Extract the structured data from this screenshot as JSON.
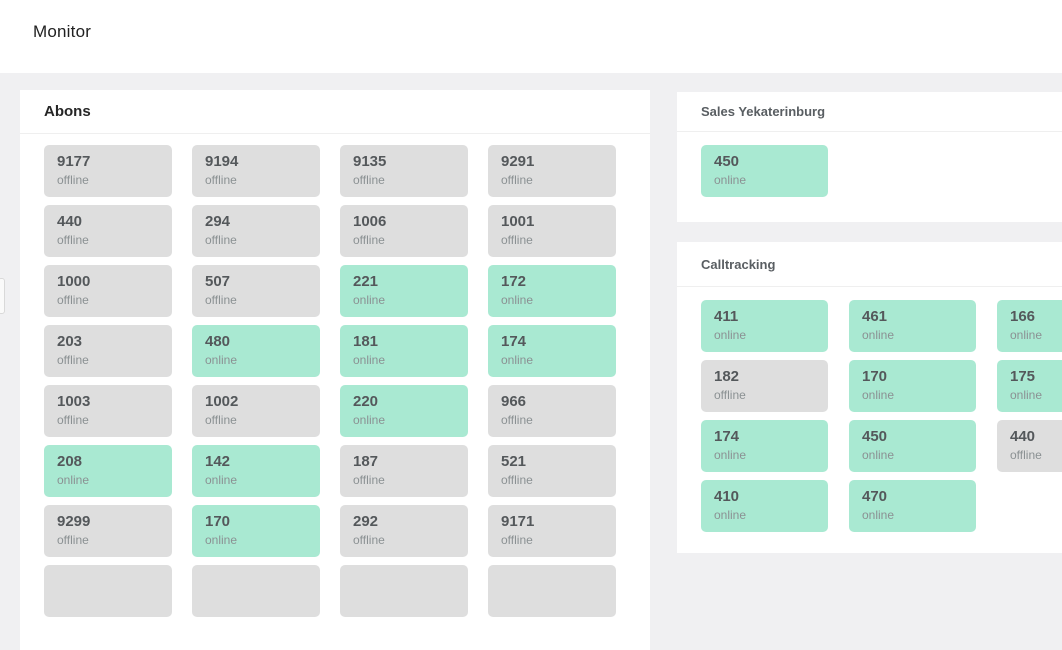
{
  "header": {
    "title": "Monitor"
  },
  "colors": {
    "online_bg": "#a9e9d2",
    "offline_bg": "#dedede",
    "page_bg": "#f0f0f2",
    "panel_bg": "#ffffff"
  },
  "panels": {
    "abons": {
      "title": "Abons",
      "cards": [
        {
          "value": "9177",
          "status": "offline"
        },
        {
          "value": "9194",
          "status": "offline"
        },
        {
          "value": "9135",
          "status": "offline"
        },
        {
          "value": "9291",
          "status": "offline"
        },
        {
          "value": "440",
          "status": "offline"
        },
        {
          "value": "294",
          "status": "offline"
        },
        {
          "value": "1006",
          "status": "offline"
        },
        {
          "value": "1001",
          "status": "offline"
        },
        {
          "value": "1000",
          "status": "offline"
        },
        {
          "value": "507",
          "status": "offline"
        },
        {
          "value": "221",
          "status": "online"
        },
        {
          "value": "172",
          "status": "online"
        },
        {
          "value": "203",
          "status": "offline"
        },
        {
          "value": "480",
          "status": "online"
        },
        {
          "value": "181",
          "status": "online"
        },
        {
          "value": "174",
          "status": "online"
        },
        {
          "value": "1003",
          "status": "offline"
        },
        {
          "value": "1002",
          "status": "offline"
        },
        {
          "value": "220",
          "status": "online"
        },
        {
          "value": "966",
          "status": "offline"
        },
        {
          "value": "208",
          "status": "online"
        },
        {
          "value": "142",
          "status": "online"
        },
        {
          "value": "187",
          "status": "offline"
        },
        {
          "value": "521",
          "status": "offline"
        },
        {
          "value": "9299",
          "status": "offline"
        },
        {
          "value": "170",
          "status": "online"
        },
        {
          "value": "292",
          "status": "offline"
        },
        {
          "value": "9171",
          "status": "offline"
        },
        {
          "value": "",
          "status": "offline",
          "partial": true
        },
        {
          "value": "",
          "status": "offline",
          "partial": true
        },
        {
          "value": "",
          "status": "offline",
          "partial": true
        },
        {
          "value": "",
          "status": "offline",
          "partial": true
        }
      ]
    },
    "sales": {
      "title": "Sales Yekaterinburg",
      "cards": [
        {
          "value": "450",
          "status": "online"
        }
      ]
    },
    "calltracking": {
      "title": "Calltracking",
      "cards": [
        {
          "value": "411",
          "status": "online"
        },
        {
          "value": "461",
          "status": "online"
        },
        {
          "value": "166",
          "status": "online"
        },
        {
          "value": "182",
          "status": "offline"
        },
        {
          "value": "170",
          "status": "online"
        },
        {
          "value": "175",
          "status": "online"
        },
        {
          "value": "174",
          "status": "online"
        },
        {
          "value": "450",
          "status": "online"
        },
        {
          "value": "440",
          "status": "offline"
        },
        {
          "value": "410",
          "status": "online"
        },
        {
          "value": "470",
          "status": "online"
        }
      ]
    }
  }
}
